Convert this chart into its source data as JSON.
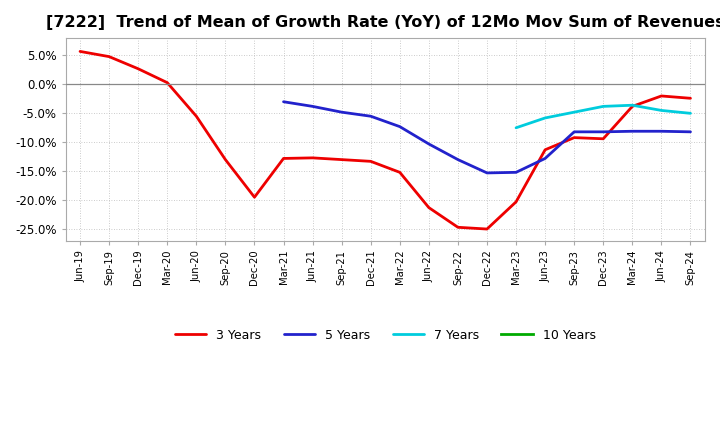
{
  "title": "[7222]  Trend of Mean of Growth Rate (YoY) of 12Mo Mov Sum of Revenues",
  "title_fontsize": 11.5,
  "ylim": [
    -0.27,
    0.08
  ],
  "yticks": [
    0.05,
    0.0,
    -0.05,
    -0.1,
    -0.15,
    -0.2,
    -0.25
  ],
  "background_color": "#ffffff",
  "grid_color": "#bbbbbb",
  "legend_labels": [
    "3 Years",
    "5 Years",
    "7 Years",
    "10 Years"
  ],
  "x_tick_labels": [
    "Jun-19",
    "Sep-19",
    "Dec-19",
    "Mar-20",
    "Jun-20",
    "Sep-20",
    "Dec-20",
    "Mar-21",
    "Jun-21",
    "Sep-21",
    "Dec-21",
    "Mar-22",
    "Jun-22",
    "Sep-22",
    "Dec-22",
    "Mar-23",
    "Jun-23",
    "Sep-23",
    "Dec-23",
    "Mar-24",
    "Jun-24",
    "Sep-24"
  ],
  "series_3y": {
    "indices": [
      0,
      1,
      2,
      3,
      4,
      5,
      6,
      7,
      8,
      9,
      10,
      11,
      12,
      13,
      14,
      15,
      16,
      17,
      18,
      19,
      20,
      21
    ],
    "values": [
      0.057,
      0.048,
      0.027,
      0.003,
      -0.055,
      -0.13,
      -0.195,
      -0.128,
      -0.127,
      -0.13,
      -0.133,
      -0.152,
      -0.213,
      -0.247,
      -0.25,
      -0.203,
      -0.113,
      -0.092,
      -0.094,
      -0.038,
      -0.02,
      -0.024
    ],
    "color": "#ee0000",
    "linewidth": 2.0
  },
  "series_5y": {
    "indices": [
      7,
      8,
      9,
      10,
      11,
      12,
      13,
      14,
      15,
      16,
      17,
      18,
      19,
      20,
      21
    ],
    "values": [
      -0.03,
      -0.038,
      -0.048,
      -0.055,
      -0.073,
      -0.103,
      -0.13,
      -0.153,
      -0.152,
      -0.128,
      -0.082,
      -0.082,
      -0.081,
      -0.081,
      -0.082
    ],
    "color": "#2222cc",
    "linewidth": 2.0
  },
  "series_7y": {
    "indices": [
      15,
      16,
      17,
      18,
      19,
      20,
      21
    ],
    "values": [
      -0.075,
      -0.058,
      -0.048,
      -0.038,
      -0.036,
      -0.045,
      -0.05
    ],
    "color": "#00ccdd",
    "linewidth": 2.0
  },
  "series_10y": {
    "indices": [],
    "values": [],
    "color": "#00aa00",
    "linewidth": 2.0
  }
}
